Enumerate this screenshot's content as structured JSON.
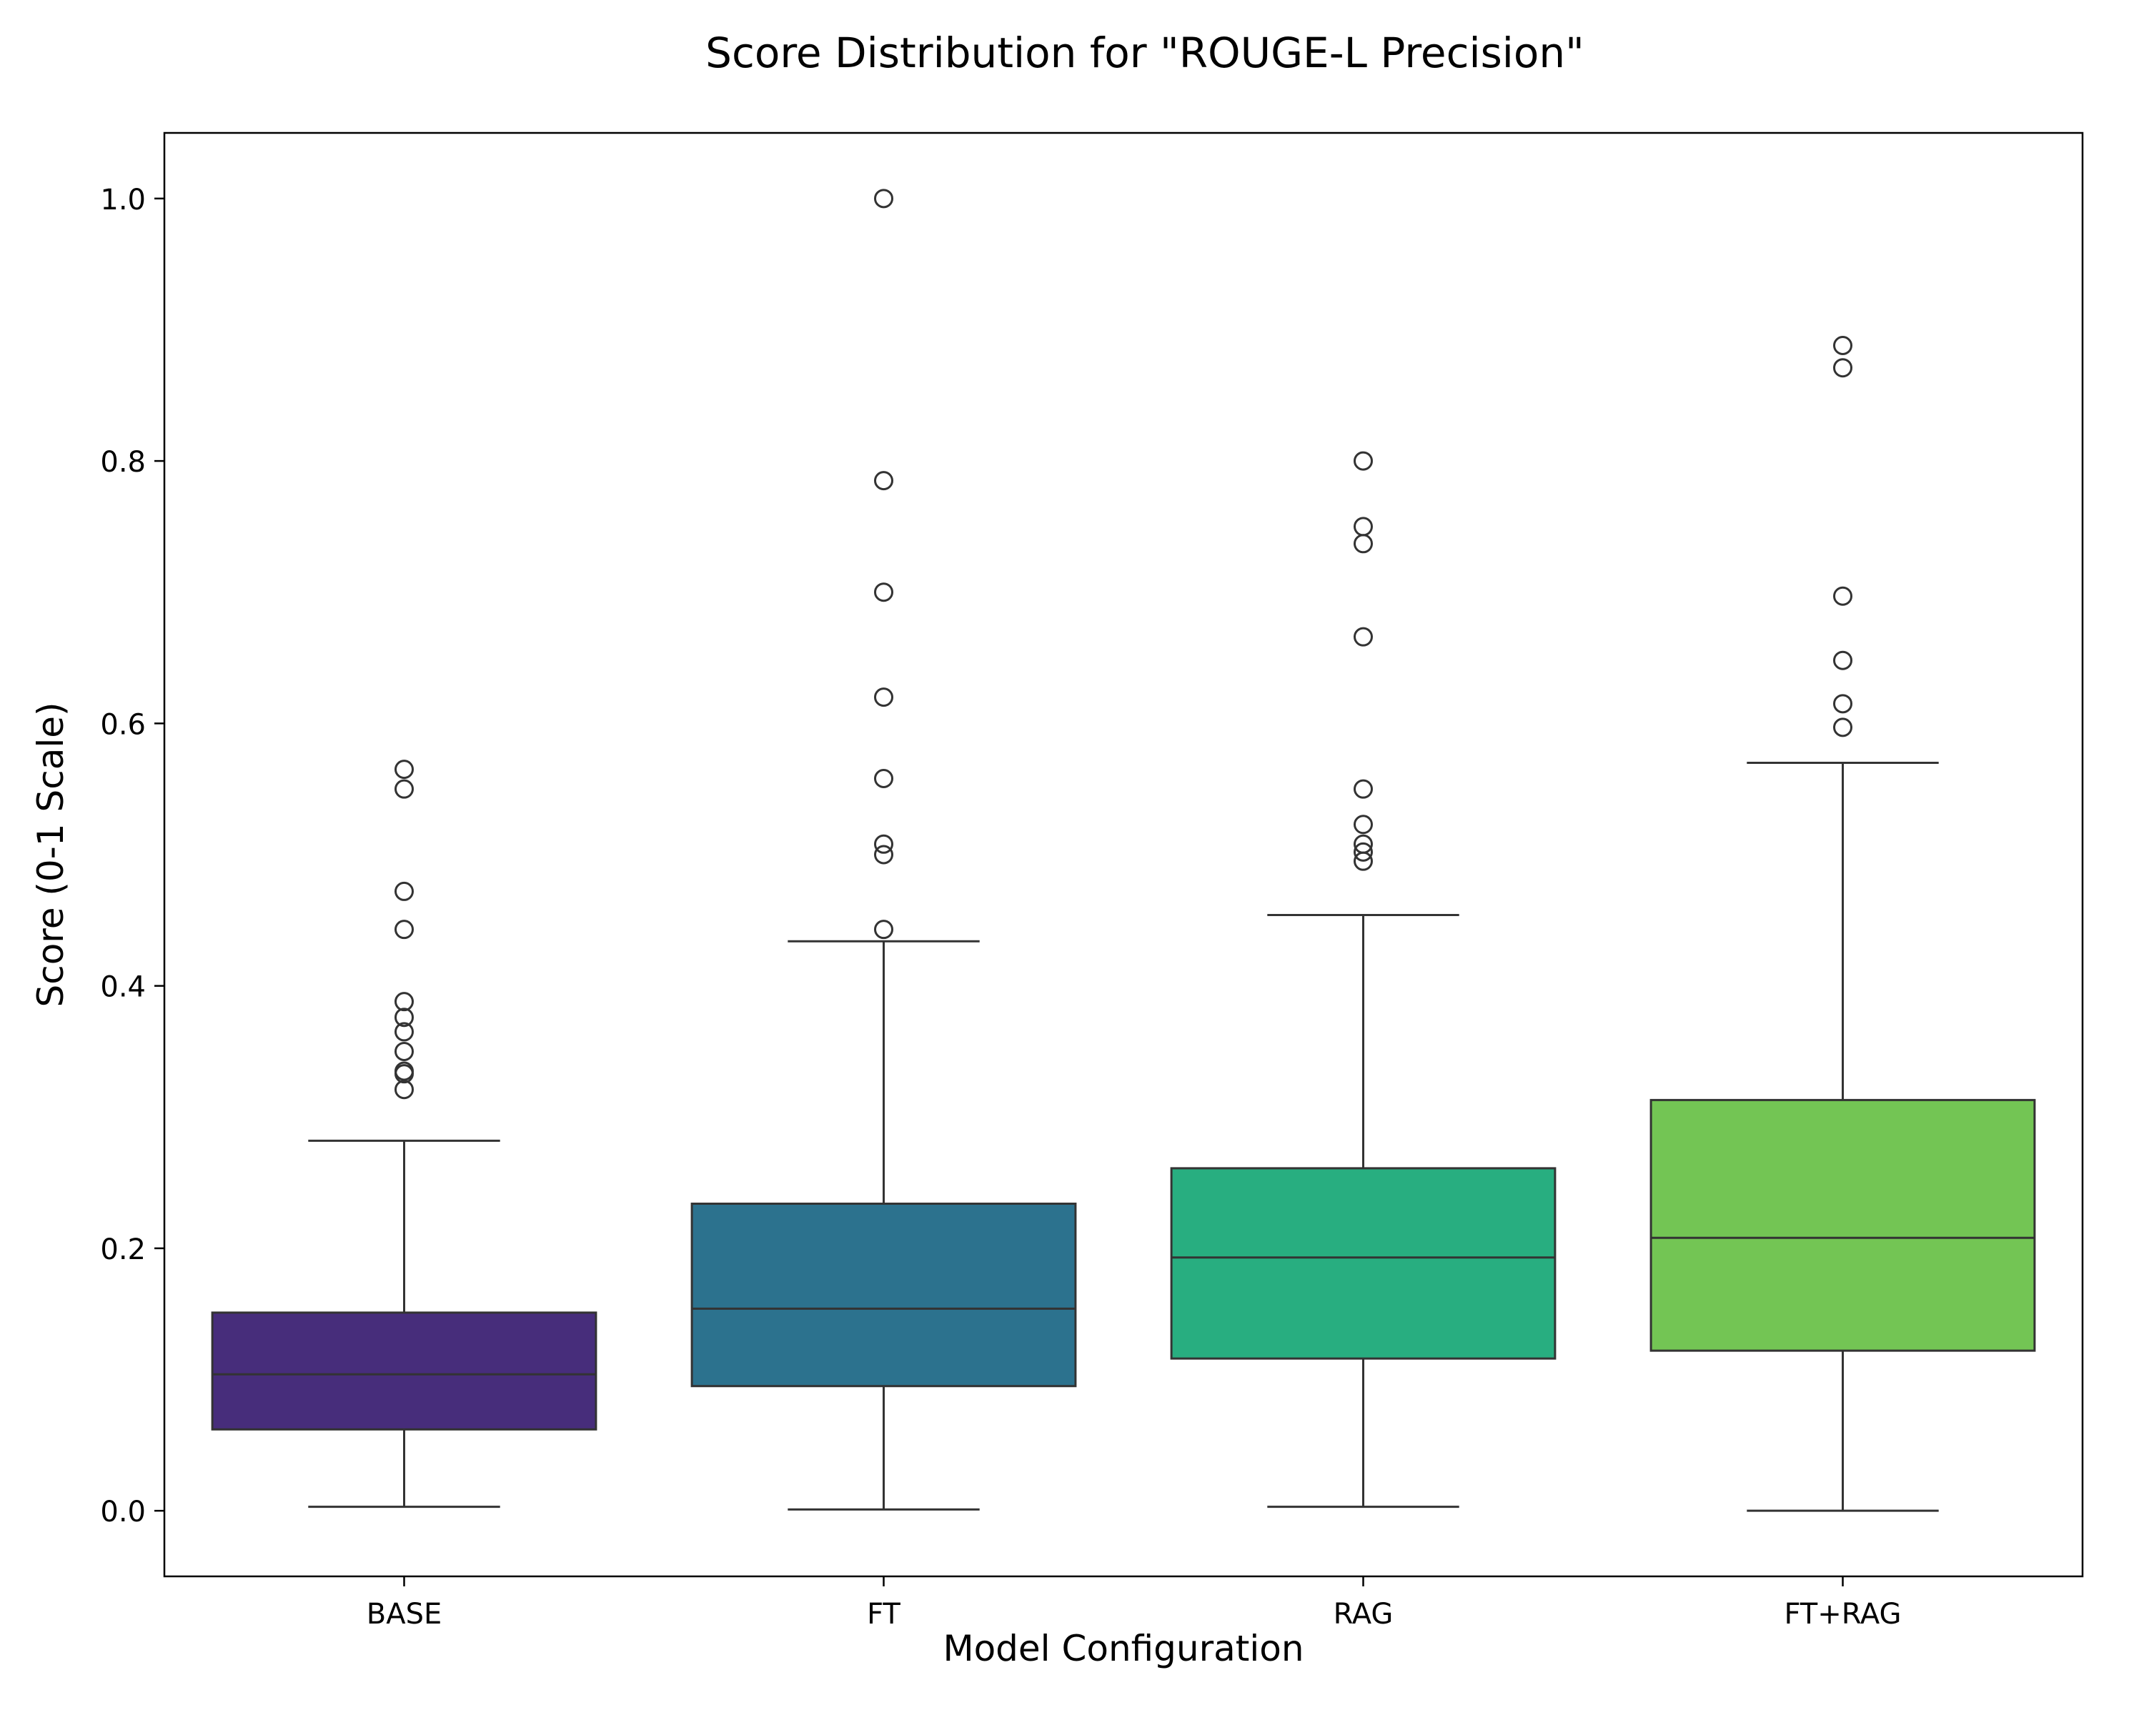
{
  "chart_data": {
    "type": "box",
    "title": "Score Distribution for \"ROUGE-L Precision\"",
    "xlabel": "Model Configuration",
    "ylabel": "Score (0-1 Scale)",
    "ylim": [
      -0.05,
      1.05
    ],
    "yticks": [
      0.0,
      0.2,
      0.4,
      0.6,
      0.8,
      1.0
    ],
    "ytick_labels": [
      "0.0",
      "0.2",
      "0.4",
      "0.6",
      "0.8",
      "1.0"
    ],
    "grid": false,
    "legend": "none",
    "categories": [
      "BASE",
      "FT",
      "RAG",
      "FT+RAG"
    ],
    "boxes": [
      {
        "name": "BASE",
        "color": "#472d7b",
        "whisker_low": 0.003,
        "q1": 0.062,
        "median": 0.104,
        "q3": 0.151,
        "whisker_high": 0.282,
        "outliers": [
          0.565,
          0.55,
          0.472,
          0.443,
          0.388,
          0.376,
          0.365,
          0.35,
          0.335,
          0.333,
          0.321
        ]
      },
      {
        "name": "FT",
        "color": "#2c728e",
        "whisker_low": 0.001,
        "q1": 0.095,
        "median": 0.154,
        "q3": 0.234,
        "whisker_high": 0.434,
        "outliers": [
          1.0,
          0.785,
          0.7,
          0.62,
          0.558,
          0.508,
          0.5,
          0.443
        ]
      },
      {
        "name": "RAG",
        "color": "#28ae80",
        "whisker_low": 0.003,
        "q1": 0.116,
        "median": 0.193,
        "q3": 0.261,
        "whisker_high": 0.454,
        "outliers": [
          0.8,
          0.75,
          0.737,
          0.666,
          0.55,
          0.523,
          0.508,
          0.502,
          0.495
        ]
      },
      {
        "name": "FT+RAG",
        "color": "#73c554",
        "whisker_low": 0.0,
        "q1": 0.122,
        "median": 0.208,
        "q3": 0.313,
        "whisker_high": 0.57,
        "outliers": [
          0.888,
          0.871,
          0.697,
          0.648,
          0.615,
          0.597
        ]
      }
    ],
    "line_color": "#333333"
  }
}
